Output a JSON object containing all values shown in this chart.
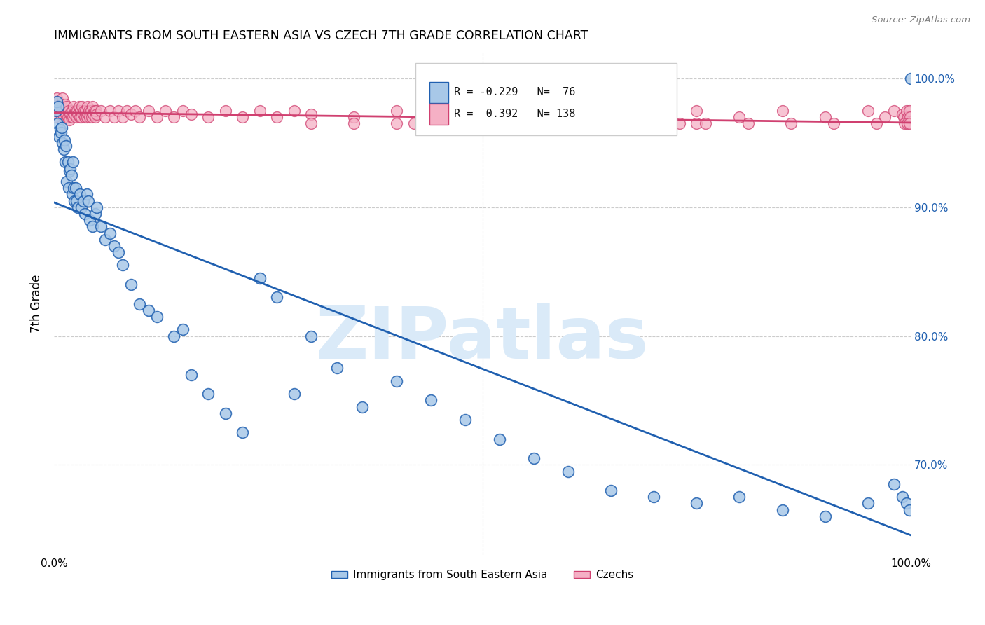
{
  "title": "IMMIGRANTS FROM SOUTH EASTERN ASIA VS CZECH 7TH GRADE CORRELATION CHART",
  "source": "Source: ZipAtlas.com",
  "ylabel": "7th Grade",
  "right_ytick_labels": [
    "70.0%",
    "80.0%",
    "90.0%",
    "100.0%"
  ],
  "right_yticks": [
    70.0,
    80.0,
    90.0,
    100.0
  ],
  "xmin": 0.0,
  "xmax": 100.0,
  "ymin": 63.0,
  "ymax": 102.0,
  "legend_label_blue": "Immigrants from South Eastern Asia",
  "legend_label_pink": "Czechs",
  "R_blue": -0.229,
  "N_blue": 76,
  "R_pink": 0.392,
  "N_pink": 138,
  "blue_color": "#a8c8e8",
  "pink_color": "#f5b0c5",
  "trendline_blue": "#2060b0",
  "trendline_pink": "#d04070",
  "watermark_color": "#daeaf8",
  "watermark_text": "ZIPatlas",
  "blue_scatter_x": [
    0.2,
    0.3,
    0.4,
    0.5,
    0.6,
    0.7,
    0.8,
    0.9,
    1.0,
    1.1,
    1.2,
    1.3,
    1.4,
    1.5,
    1.6,
    1.7,
    1.8,
    1.9,
    2.0,
    2.1,
    2.2,
    2.3,
    2.4,
    2.5,
    2.6,
    2.8,
    3.0,
    3.2,
    3.4,
    3.6,
    3.8,
    4.0,
    4.2,
    4.5,
    4.8,
    5.0,
    5.5,
    6.0,
    6.5,
    7.0,
    7.5,
    8.0,
    9.0,
    10.0,
    11.0,
    12.0,
    14.0,
    15.0,
    16.0,
    18.0,
    20.0,
    22.0,
    24.0,
    26.0,
    28.0,
    30.0,
    33.0,
    36.0,
    40.0,
    44.0,
    48.0,
    52.0,
    56.0,
    60.0,
    65.0,
    70.0,
    75.0,
    80.0,
    85.0,
    90.0,
    95.0,
    98.0,
    99.0,
    99.5,
    99.8,
    100.0
  ],
  "blue_scatter_y": [
    97.5,
    98.2,
    96.5,
    97.8,
    95.5,
    96.0,
    95.8,
    96.2,
    95.0,
    94.5,
    95.2,
    93.5,
    94.8,
    92.0,
    93.5,
    91.5,
    92.8,
    93.0,
    92.5,
    91.0,
    93.5,
    91.5,
    90.5,
    91.5,
    90.5,
    90.0,
    91.0,
    90.0,
    90.5,
    89.5,
    91.0,
    90.5,
    89.0,
    88.5,
    89.5,
    90.0,
    88.5,
    87.5,
    88.0,
    87.0,
    86.5,
    85.5,
    84.0,
    82.5,
    82.0,
    81.5,
    80.0,
    80.5,
    77.0,
    75.5,
    74.0,
    72.5,
    84.5,
    83.0,
    75.5,
    80.0,
    77.5,
    74.5,
    76.5,
    75.0,
    73.5,
    72.0,
    70.5,
    69.5,
    68.0,
    67.5,
    67.0,
    67.5,
    66.5,
    66.0,
    67.0,
    68.5,
    67.5,
    67.0,
    66.5,
    100.0
  ],
  "pink_scatter_x": [
    0.1,
    0.2,
    0.3,
    0.4,
    0.5,
    0.6,
    0.7,
    0.8,
    0.9,
    1.0,
    1.1,
    1.2,
    1.3,
    1.4,
    1.5,
    1.6,
    1.7,
    1.8,
    1.9,
    2.0,
    2.1,
    2.2,
    2.3,
    2.4,
    2.5,
    2.6,
    2.7,
    2.8,
    2.9,
    3.0,
    3.1,
    3.2,
    3.3,
    3.4,
    3.5,
    3.6,
    3.7,
    3.8,
    3.9,
    4.0,
    4.1,
    4.2,
    4.3,
    4.4,
    4.5,
    4.6,
    4.7,
    4.8,
    4.9,
    5.0,
    5.5,
    6.0,
    6.5,
    7.0,
    7.5,
    8.0,
    8.5,
    9.0,
    9.5,
    10.0,
    11.0,
    12.0,
    13.0,
    14.0,
    15.0,
    16.0,
    18.0,
    20.0,
    22.0,
    24.0,
    26.0,
    28.0,
    30.0,
    35.0,
    40.0,
    45.0,
    50.0,
    55.0,
    60.0,
    65.0,
    70.0,
    75.0,
    80.0,
    85.0,
    90.0,
    95.0,
    97.0,
    98.0,
    99.0,
    99.2,
    99.5,
    99.7,
    99.8,
    99.9,
    52.0,
    55.0,
    60.0,
    65.0,
    70.0,
    75.0,
    48.0,
    52.0,
    57.0,
    62.0,
    67.0,
    72.0,
    43.0,
    47.0,
    53.0,
    58.0,
    63.0,
    68.0,
    73.0,
    44.0,
    49.0,
    54.0,
    59.0,
    64.0,
    69.0,
    42.0,
    46.0,
    51.0,
    56.0,
    61.0,
    66.0,
    71.0,
    76.0,
    81.0,
    86.0,
    91.0,
    96.0,
    99.3,
    99.6,
    99.85,
    30.0,
    35.0,
    40.0,
    45.0
  ],
  "pink_scatter_y": [
    97.0,
    98.0,
    98.5,
    97.8,
    98.2,
    97.5,
    98.0,
    97.2,
    97.8,
    98.5,
    97.0,
    97.5,
    98.0,
    97.2,
    97.8,
    97.0,
    97.5,
    96.8,
    97.3,
    97.0,
    97.5,
    97.0,
    97.8,
    97.2,
    97.5,
    97.0,
    97.5,
    97.2,
    97.8,
    97.0,
    97.5,
    97.0,
    97.8,
    97.2,
    97.5,
    97.0,
    97.5,
    97.0,
    97.8,
    97.2,
    97.5,
    97.0,
    97.5,
    97.0,
    97.8,
    97.2,
    97.5,
    97.0,
    97.5,
    97.2,
    97.5,
    97.0,
    97.5,
    97.0,
    97.5,
    97.0,
    97.5,
    97.2,
    97.5,
    97.0,
    97.5,
    97.0,
    97.5,
    97.0,
    97.5,
    97.2,
    97.0,
    97.5,
    97.0,
    97.5,
    97.0,
    97.5,
    97.2,
    97.0,
    97.5,
    97.0,
    97.5,
    97.0,
    97.5,
    97.2,
    97.0,
    97.5,
    97.0,
    97.5,
    97.0,
    97.5,
    97.0,
    97.5,
    97.2,
    97.0,
    97.5,
    97.0,
    97.5,
    97.0,
    96.5,
    96.5,
    96.5,
    96.5,
    96.5,
    96.5,
    96.5,
    96.5,
    96.5,
    96.5,
    96.5,
    96.5,
    96.5,
    96.5,
    96.5,
    96.5,
    96.5,
    96.5,
    96.5,
    96.5,
    96.5,
    96.5,
    96.5,
    96.5,
    96.5,
    96.5,
    96.5,
    96.5,
    96.5,
    96.5,
    96.5,
    96.5,
    96.5,
    96.5,
    96.5,
    96.5,
    96.5,
    96.5,
    96.5,
    96.5,
    96.5,
    96.5,
    96.5,
    96.5
  ]
}
